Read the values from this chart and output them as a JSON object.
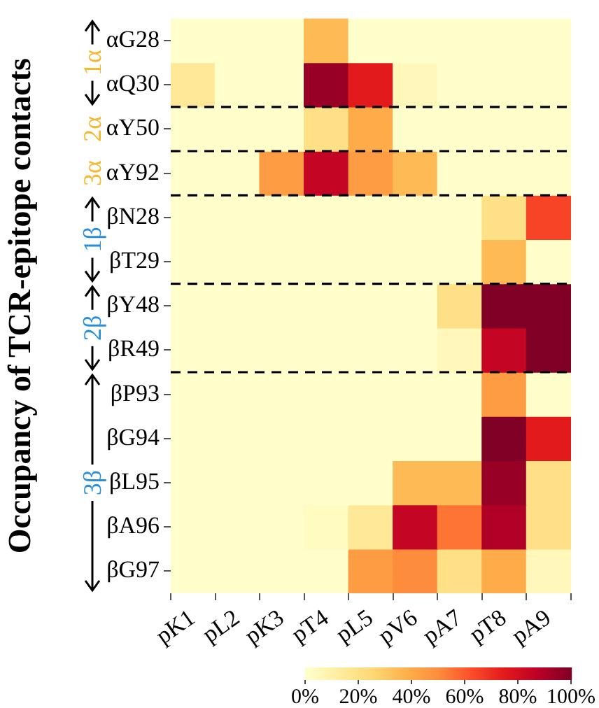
{
  "chart_data": {
    "type": "heatmap",
    "ylabel": "Occupancy of TCR-epitope contacts",
    "categories": [
      "pK1",
      "pL2",
      "pK3",
      "pT4",
      "pL5",
      "pV6",
      "pA7",
      "pT8",
      "pA9"
    ],
    "y_categories": [
      "αG28",
      "αQ30",
      "αY50",
      "αY92",
      "βN28",
      "βT29",
      "βY48",
      "βR49",
      "βP93",
      "βG94",
      "βL95",
      "βA96",
      "βG97"
    ],
    "cells": [
      [
        0,
        0,
        0,
        35,
        0,
        0,
        0,
        0,
        0
      ],
      [
        15,
        0,
        0,
        95,
        75,
        5,
        0,
        0,
        0
      ],
      [
        0,
        0,
        0,
        20,
        40,
        0,
        0,
        0,
        0
      ],
      [
        0,
        0,
        45,
        85,
        45,
        35,
        0,
        0,
        0
      ],
      [
        0,
        0,
        0,
        0,
        0,
        0,
        0,
        20,
        65
      ],
      [
        0,
        0,
        0,
        0,
        0,
        0,
        0,
        35,
        0
      ],
      [
        0,
        0,
        0,
        0,
        0,
        0,
        20,
        100,
        100
      ],
      [
        0,
        0,
        0,
        0,
        0,
        0,
        5,
        85,
        100
      ],
      [
        0,
        0,
        0,
        0,
        0,
        0,
        0,
        45,
        0
      ],
      [
        0,
        0,
        0,
        0,
        0,
        0,
        0,
        100,
        75
      ],
      [
        0,
        0,
        0,
        0,
        0,
        35,
        35,
        95,
        20
      ],
      [
        0,
        0,
        0,
        3,
        15,
        85,
        55,
        90,
        20
      ],
      [
        0,
        0,
        0,
        0,
        45,
        50,
        20,
        40,
        5
      ]
    ],
    "clim": [
      0,
      100
    ],
    "cticks": [
      {
        "value": 0,
        "label": "0%"
      },
      {
        "value": 20,
        "label": "20%"
      },
      {
        "value": 40,
        "label": "40%"
      },
      {
        "value": 60,
        "label": "60%"
      },
      {
        "value": 80,
        "label": "80%"
      },
      {
        "value": 100,
        "label": "100%"
      }
    ],
    "annotations": [
      "1α",
      "2α",
      "3α",
      "1β",
      "2β",
      "3β"
    ]
  }
}
